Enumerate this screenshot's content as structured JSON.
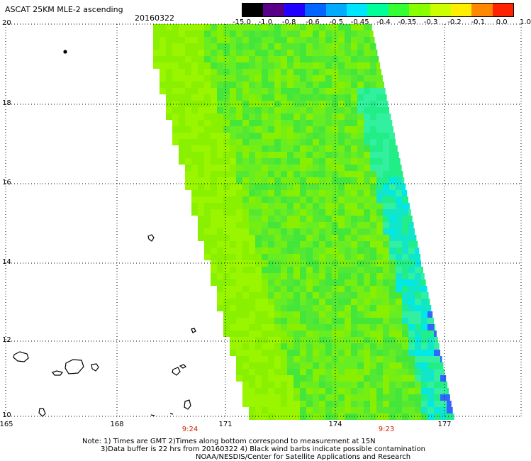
{
  "header": {
    "title": "ASCAT 25KM MLE-2 ascending",
    "date": "20160322"
  },
  "colorbar": {
    "labels": [
      "-15.0",
      "-1.0",
      "-0.8",
      "-0.6",
      "-0.5",
      "-0.45",
      "-0.4",
      "-0.35",
      "-0.3",
      "-0.2",
      "-0.1",
      "0.0",
      "1.0"
    ],
    "colors": [
      "#000000",
      "#5a0088",
      "#2200ff",
      "#0066ff",
      "#00aaff",
      "#00e5ff",
      "#00ff99",
      "#33ff33",
      "#88ff00",
      "#ccff00",
      "#ffee00",
      "#ff8800",
      "#ff2200"
    ]
  },
  "axes": {
    "lat_labels": [
      "20",
      "18",
      "16",
      "14",
      "12",
      "10"
    ],
    "lon_labels": [
      "165",
      "168",
      "171",
      "174",
      "177"
    ]
  },
  "times": [
    "9:24",
    "9:23"
  ],
  "notes": {
    "line1": "Note: 1) Times are GMT 2)Times along bottom correspond to measurement at 15N",
    "line2": "3)Data buffer is 22 hrs from 20160322 4) Black wind barbs indicate possible contamination",
    "line3": "NOAA/NESDIS/Center for Satellite Applications and Research"
  }
}
